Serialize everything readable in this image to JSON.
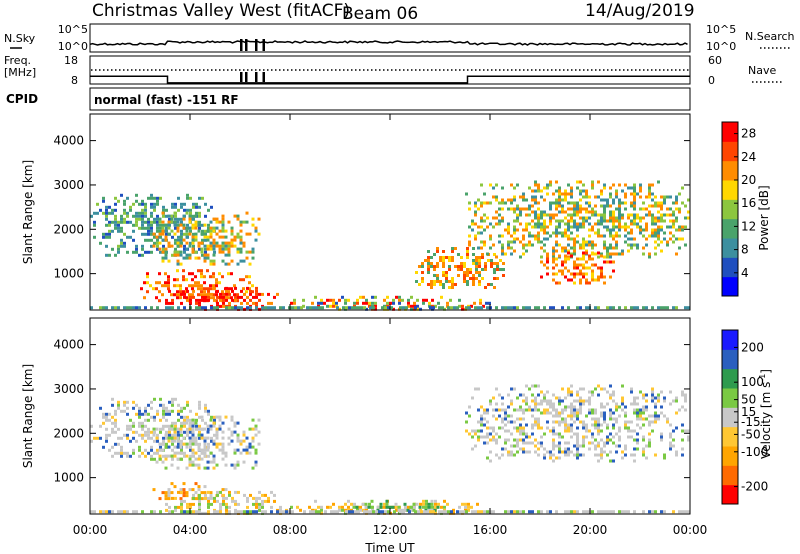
{
  "header": {
    "station": "Christmas Valley West (fitACF)",
    "beam": "Beam 06",
    "date": "14/Aug/2019"
  },
  "side_labels": {
    "nsky": "N.Sky",
    "nsky_top": "10^5",
    "nsky_bottom": "10^0",
    "nsearch": "N.Search",
    "nsearch_top": "10^5",
    "nsearch_bottom": "10^0",
    "freq": "Freq.",
    "freq_unit": "[MHz]",
    "freq_top": "18",
    "freq_bottom": "8",
    "nave": "Nave",
    "nave_top": "60",
    "nave_bottom": "0",
    "cpid": "CPID",
    "cpid_value": "normal (fast) -151 RF"
  },
  "colors": {
    "power": [
      "#0000ff",
      "#1f4fbf",
      "#3c8f9f",
      "#4aa36b",
      "#8cc63f",
      "#ffd700",
      "#ff8c00",
      "#ff4500",
      "#ff0000"
    ],
    "velocity": [
      "#ff0000",
      "#ff6a00",
      "#ffa500",
      "#ffc733",
      "#c8c8c8",
      "#7ac943",
      "#2e9b4e",
      "#2a5fbf",
      "#1a1aff"
    ]
  },
  "chart_data": [
    {
      "type": "line",
      "title": "N.Sky / N.Search",
      "y_scale": "log",
      "ylim": [
        1,
        100000
      ],
      "x": [
        "00:00",
        "04:00",
        "08:00",
        "12:00",
        "16:00",
        "20:00",
        "00:00"
      ],
      "series": []
    },
    {
      "type": "line",
      "title": "Freq. / Nave",
      "x_hours": [
        0,
        3.1,
        3.1,
        15.1,
        15.1,
        24
      ],
      "series": [
        {
          "name": "Freq.",
          "values": [
            10.8,
            10.8,
            8.4,
            8.4,
            10.8,
            10.8
          ]
        }
      ],
      "ylim": [
        8,
        18
      ],
      "y2lim": [
        0,
        60
      ]
    },
    {
      "type": "heatmap",
      "panel": "power",
      "xlabel": "",
      "ylabel": "Slant Range [km]",
      "x_ticks": [
        "00:00",
        "04:00",
        "08:00",
        "12:00",
        "16:00",
        "20:00",
        "00:00"
      ],
      "y_ticks": [
        1000,
        2000,
        3000,
        4000
      ],
      "ylim": [
        180,
        4600
      ],
      "xlim_hours": [
        0,
        24
      ],
      "colorbar": {
        "label": "Power [dB]",
        "ticks": [
          4,
          8,
          12,
          16,
          20,
          24,
          28
        ],
        "range": [
          0,
          30
        ]
      },
      "regions": [
        {
          "t": [
            0.0,
            5.0
          ],
          "r": [
            1400,
            2800
          ],
          "level": "blue-green"
        },
        {
          "t": [
            2.5,
            6.8
          ],
          "r": [
            1200,
            2400
          ],
          "level": "green-orange"
        },
        {
          "t": [
            2.0,
            6.5
          ],
          "r": [
            400,
            1100
          ],
          "level": "orange-red"
        },
        {
          "t": [
            3.0,
            7.5
          ],
          "r": [
            200,
            700
          ],
          "level": "red"
        },
        {
          "t": [
            8.0,
            16.0
          ],
          "r": [
            200,
            500
          ],
          "level": "mixed"
        },
        {
          "t": [
            13.0,
            16.5
          ],
          "r": [
            700,
            1600
          ],
          "level": "orange"
        },
        {
          "t": [
            15.0,
            24.0
          ],
          "r": [
            1400,
            3100
          ],
          "level": "green-orange"
        },
        {
          "t": [
            18.0,
            21.0
          ],
          "r": [
            800,
            1500
          ],
          "level": "orange-red"
        }
      ]
    },
    {
      "type": "heatmap",
      "panel": "velocity",
      "xlabel": "Time UT",
      "ylabel": "Slant Range [km]",
      "x_ticks": [
        "00:00",
        "04:00",
        "08:00",
        "12:00",
        "16:00",
        "20:00",
        "00:00"
      ],
      "y_ticks": [
        1000,
        2000,
        3000,
        4000
      ],
      "ylim": [
        180,
        4600
      ],
      "xlim_hours": [
        0,
        24
      ],
      "colorbar": {
        "label": "Velocity [m s^-1]",
        "ticks": [
          -200,
          -100,
          -50,
          -15,
          15,
          50,
          100,
          200
        ],
        "range": [
          -250,
          250
        ]
      },
      "regions": [
        {
          "t": [
            0.0,
            5.0
          ],
          "r": [
            1400,
            2800
          ],
          "level": "grey"
        },
        {
          "t": [
            2.5,
            6.8
          ],
          "r": [
            1200,
            2400
          ],
          "level": "grey"
        },
        {
          "t": [
            2.5,
            5.5
          ],
          "r": [
            500,
            900
          ],
          "level": "orange"
        },
        {
          "t": [
            3.0,
            8.0
          ],
          "r": [
            200,
            700
          ],
          "level": "grey-green"
        },
        {
          "t": [
            8.0,
            16.0
          ],
          "r": [
            200,
            500
          ],
          "level": "yellow-orange"
        },
        {
          "t": [
            10.5,
            14.0
          ],
          "r": [
            250,
            500
          ],
          "level": "green"
        },
        {
          "t": [
            15.0,
            24.0
          ],
          "r": [
            1400,
            3100
          ],
          "level": "grey"
        }
      ]
    }
  ],
  "axis_labels": {
    "ylabel": "Slant Range [km]",
    "xlabel": "Time UT",
    "power_cb": "Power [dB]",
    "velocity_cb": "Velocity [m s",
    "velocity_cb_sup": "-1",
    "velocity_cb_end": "]"
  }
}
